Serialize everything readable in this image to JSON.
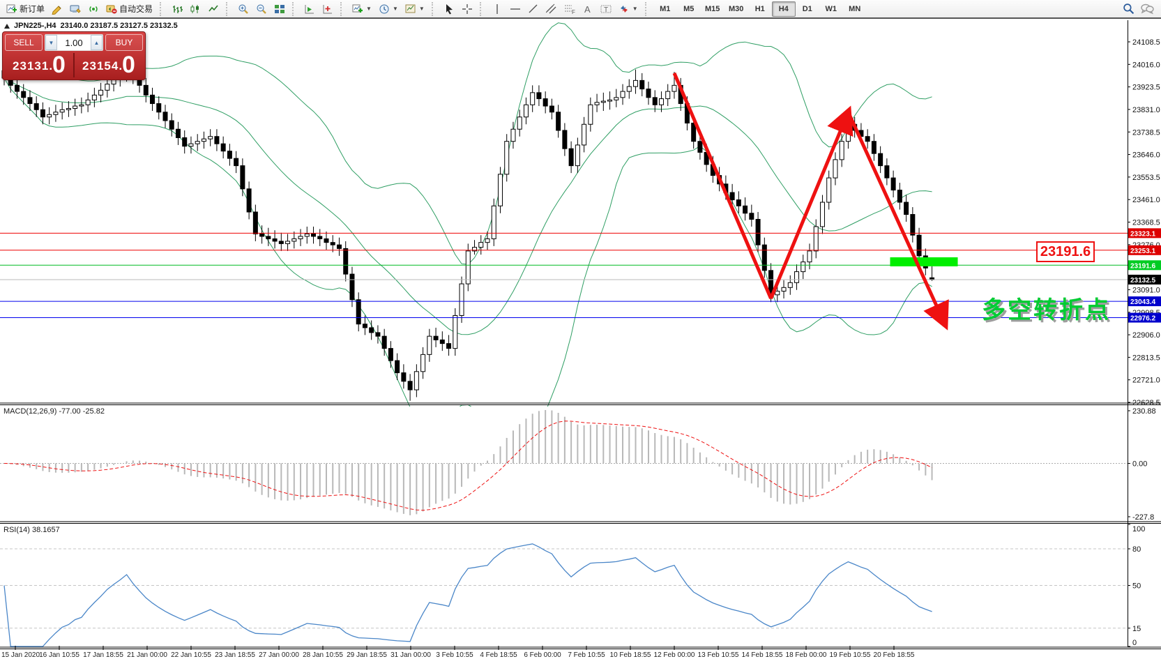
{
  "toolbar": {
    "new_order_label": "新订单",
    "autotrading_label": "自动交易",
    "timeframes": [
      "M1",
      "M5",
      "M15",
      "M30",
      "H1",
      "H4",
      "D1",
      "W1",
      "MN"
    ],
    "active_timeframe": "H4",
    "icon_names": [
      "new-order-icon",
      "styler-icon",
      "metaeditor-icon",
      "signals-icon",
      "autotrading-icon",
      "bar-chart-icon",
      "candlestick-chart-icon",
      "line-chart-icon",
      "zoom-in-icon",
      "zoom-out-icon",
      "tile-windows-icon",
      "auto-scroll-icon",
      "chart-shift-icon",
      "indicators-icon",
      "periods-icon",
      "templates-icon",
      "cursor-icon",
      "crosshair-icon",
      "vertical-line-icon",
      "horizontal-line-icon",
      "trendline-icon",
      "equidistant-channel-icon",
      "fibonacci-icon",
      "text-icon",
      "text-label-icon",
      "arrows-icon",
      "search-icon",
      "chat-icon"
    ]
  },
  "symbol_info": {
    "title": "JPN225-,H4",
    "ohlc_text": "23140.0 23187.5 23127.5 23132.5",
    "collapse_icon": "triangle-up"
  },
  "trade_panel": {
    "sell_label": "SELL",
    "buy_label": "BUY",
    "volume": "1.00",
    "sell_price_main": "23131",
    "sell_price_big": "0",
    "buy_price_main": "23154",
    "buy_price_big": "0",
    "panel_color": "#c03030"
  },
  "chart_data": {
    "type": "candlestick",
    "symbol": "JPN225-",
    "timeframe": "H4",
    "y_ticks": [
      24108.5,
      24016.0,
      23923.5,
      23831.0,
      23738.5,
      23646.0,
      23553.5,
      23461.0,
      23368.5,
      23276.0,
      23183.5,
      23091.0,
      22998.5,
      22906.0,
      22813.5,
      22721.0,
      22628.5
    ],
    "time_labels": [
      "15 Jan 2020",
      "16 Jan 10:55",
      "17 Jan 18:55",
      "21 Jan 00:00",
      "22 Jan 10:55",
      "23 Jan 18:55",
      "27 Jan 00:00",
      "28 Jan 10:55",
      "29 Jan 18:55",
      "31 Jan 00:00",
      "3 Feb 10:55",
      "4 Feb 18:55",
      "6 Feb 00:00",
      "7 Feb 10:55",
      "10 Feb 18:55",
      "12 Feb 00:00",
      "13 Feb 10:55",
      "14 Feb 18:55",
      "18 Feb 00:00",
      "19 Feb 10:55",
      "20 Feb 18:55"
    ],
    "candles": [
      [
        23990,
        24020,
        23930,
        23960
      ],
      [
        23960,
        23990,
        23900,
        23930
      ],
      [
        23930,
        23960,
        23875,
        23905
      ],
      [
        23905,
        23935,
        23850,
        23880
      ],
      [
        23880,
        23910,
        23825,
        23855
      ],
      [
        23855,
        23885,
        23800,
        23830
      ],
      [
        23830,
        23860,
        23770,
        23800
      ],
      [
        23800,
        23840,
        23770,
        23810
      ],
      [
        23810,
        23850,
        23780,
        23820
      ],
      [
        23820,
        23860,
        23790,
        23830
      ],
      [
        23830,
        23865,
        23800,
        23835
      ],
      [
        23835,
        23875,
        23805,
        23845
      ],
      [
        23845,
        23880,
        23815,
        23850
      ],
      [
        23850,
        23900,
        23820,
        23870
      ],
      [
        23870,
        23920,
        23840,
        23890
      ],
      [
        23890,
        23940,
        23860,
        23910
      ],
      [
        23910,
        23965,
        23880,
        23935
      ],
      [
        23935,
        23985,
        23905,
        23955
      ],
      [
        23955,
        24005,
        23925,
        23975
      ],
      [
        23975,
        24040,
        23945,
        24000
      ],
      [
        24000,
        24030,
        23935,
        23965
      ],
      [
        23965,
        23995,
        23900,
        23930
      ],
      [
        23930,
        23960,
        23860,
        23890
      ],
      [
        23890,
        23920,
        23825,
        23855
      ],
      [
        23855,
        23885,
        23790,
        23820
      ],
      [
        23820,
        23850,
        23755,
        23785
      ],
      [
        23785,
        23815,
        23720,
        23750
      ],
      [
        23750,
        23780,
        23685,
        23715
      ],
      [
        23715,
        23745,
        23650,
        23680
      ],
      [
        23680,
        23720,
        23650,
        23690
      ],
      [
        23690,
        23730,
        23660,
        23700
      ],
      [
        23700,
        23740,
        23670,
        23710
      ],
      [
        23710,
        23750,
        23680,
        23720
      ],
      [
        23720,
        23750,
        23660,
        23690
      ],
      [
        23690,
        23720,
        23630,
        23660
      ],
      [
        23660,
        23690,
        23600,
        23630
      ],
      [
        23630,
        23660,
        23570,
        23600
      ],
      [
        23600,
        23630,
        23475,
        23505
      ],
      [
        23505,
        23535,
        23380,
        23410
      ],
      [
        23410,
        23440,
        23290,
        23320
      ],
      [
        23320,
        23355,
        23280,
        23310
      ],
      [
        23310,
        23345,
        23270,
        23300
      ],
      [
        23300,
        23335,
        23260,
        23290
      ],
      [
        23290,
        23325,
        23250,
        23280
      ],
      [
        23280,
        23320,
        23250,
        23290
      ],
      [
        23290,
        23330,
        23260,
        23300
      ],
      [
        23300,
        23340,
        23270,
        23310
      ],
      [
        23310,
        23350,
        23280,
        23320
      ],
      [
        23320,
        23350,
        23280,
        23310
      ],
      [
        23310,
        23340,
        23270,
        23300
      ],
      [
        23300,
        23330,
        23255,
        23285
      ],
      [
        23285,
        23315,
        23245,
        23275
      ],
      [
        23275,
        23305,
        23230,
        23260
      ],
      [
        23260,
        23290,
        23125,
        23155
      ],
      [
        23155,
        23185,
        23020,
        23050
      ],
      [
        23050,
        23080,
        22920,
        22950
      ],
      [
        22950,
        22985,
        22905,
        22935
      ],
      [
        22935,
        22965,
        22885,
        22915
      ],
      [
        22915,
        22945,
        22870,
        22900
      ],
      [
        22900,
        22930,
        22820,
        22850
      ],
      [
        22850,
        22880,
        22770,
        22800
      ],
      [
        22800,
        22830,
        22720,
        22750
      ],
      [
        22750,
        22785,
        22685,
        22715
      ],
      [
        22715,
        22745,
        22635,
        22680
      ],
      [
        22680,
        22785,
        22650,
        22755
      ],
      [
        22755,
        22855,
        22725,
        22825
      ],
      [
        22825,
        22930,
        22795,
        22900
      ],
      [
        22900,
        22935,
        22855,
        22885
      ],
      [
        22885,
        22920,
        22840,
        22870
      ],
      [
        22870,
        22905,
        22820,
        22850
      ],
      [
        22850,
        23015,
        22820,
        22985
      ],
      [
        22985,
        23145,
        22955,
        23115
      ],
      [
        23115,
        23280,
        23085,
        23250
      ],
      [
        23250,
        23295,
        23235,
        23265
      ],
      [
        23265,
        23315,
        23235,
        23285
      ],
      [
        23285,
        23330,
        23255,
        23300
      ],
      [
        23300,
        23465,
        23270,
        23435
      ],
      [
        23435,
        23595,
        23405,
        23565
      ],
      [
        23565,
        23730,
        23535,
        23700
      ],
      [
        23700,
        23780,
        23670,
        23750
      ],
      [
        23750,
        23830,
        23720,
        23800
      ],
      [
        23800,
        23880,
        23770,
        23850
      ],
      [
        23850,
        23930,
        23820,
        23900
      ],
      [
        23900,
        23930,
        23845,
        23875
      ],
      [
        23875,
        23905,
        23815,
        23845
      ],
      [
        23845,
        23875,
        23790,
        23820
      ],
      [
        23820,
        23850,
        23715,
        23745
      ],
      [
        23745,
        23775,
        23640,
        23670
      ],
      [
        23670,
        23700,
        23570,
        23600
      ],
      [
        23600,
        23715,
        23570,
        23685
      ],
      [
        23685,
        23800,
        23655,
        23770
      ],
      [
        23770,
        23880,
        23740,
        23850
      ],
      [
        23850,
        23895,
        23820,
        23860
      ],
      [
        23860,
        23900,
        23825,
        23865
      ],
      [
        23865,
        23905,
        23830,
        23870
      ],
      [
        23870,
        23915,
        23840,
        23880
      ],
      [
        23880,
        23935,
        23850,
        23905
      ],
      [
        23905,
        23955,
        23875,
        23925
      ],
      [
        23925,
        23995,
        23895,
        23950
      ],
      [
        23950,
        23980,
        23885,
        23915
      ],
      [
        23915,
        23945,
        23850,
        23880
      ],
      [
        23880,
        23910,
        23820,
        23850
      ],
      [
        23850,
        23905,
        23820,
        23875
      ],
      [
        23875,
        23935,
        23845,
        23905
      ],
      [
        23905,
        23985,
        23875,
        23930
      ],
      [
        23930,
        23960,
        23825,
        23855
      ],
      [
        23855,
        23885,
        23745,
        23775
      ],
      [
        23775,
        23805,
        23670,
        23700
      ],
      [
        23700,
        23735,
        23625,
        23655
      ],
      [
        23655,
        23690,
        23575,
        23605
      ],
      [
        23605,
        23640,
        23530,
        23560
      ],
      [
        23560,
        23595,
        23495,
        23525
      ],
      [
        23525,
        23560,
        23460,
        23490
      ],
      [
        23490,
        23525,
        23430,
        23460
      ],
      [
        23460,
        23495,
        23405,
        23435
      ],
      [
        23435,
        23470,
        23375,
        23405
      ],
      [
        23405,
        23440,
        23350,
        23380
      ],
      [
        23380,
        23410,
        23245,
        23275
      ],
      [
        23275,
        23305,
        23140,
        23170
      ],
      [
        23170,
        23200,
        23040,
        23070
      ],
      [
        23070,
        23115,
        23040,
        23085
      ],
      [
        23085,
        23130,
        23055,
        23100
      ],
      [
        23100,
        23150,
        23070,
        23120
      ],
      [
        23120,
        23195,
        23090,
        23165
      ],
      [
        23165,
        23235,
        23135,
        23205
      ],
      [
        23205,
        23280,
        23175,
        23250
      ],
      [
        23250,
        23380,
        23220,
        23350
      ],
      [
        23350,
        23480,
        23320,
        23450
      ],
      [
        23450,
        23580,
        23420,
        23550
      ],
      [
        23550,
        23655,
        23520,
        23625
      ],
      [
        23625,
        23730,
        23595,
        23700
      ],
      [
        23700,
        23835,
        23670,
        23770
      ],
      [
        23770,
        23800,
        23715,
        23745
      ],
      [
        23745,
        23775,
        23690,
        23720
      ],
      [
        23720,
        23750,
        23670,
        23700
      ],
      [
        23700,
        23730,
        23620,
        23650
      ],
      [
        23650,
        23680,
        23570,
        23600
      ],
      [
        23600,
        23630,
        23520,
        23550
      ],
      [
        23550,
        23580,
        23470,
        23500
      ],
      [
        23500,
        23530,
        23420,
        23450
      ],
      [
        23450,
        23480,
        23370,
        23400
      ],
      [
        23400,
        23430,
        23285,
        23315
      ],
      [
        23315,
        23345,
        23200,
        23230
      ],
      [
        23230,
        23260,
        23150,
        23180
      ],
      [
        23140,
        23187,
        23127,
        23132
      ]
    ],
    "bollinger": {
      "period": 20,
      "deviation": 2,
      "color": "#2e9e63"
    },
    "levels": [
      {
        "price": 23323.1,
        "line_color": "#ee0000",
        "badge_bg": "#dd0000",
        "label": "23323.1"
      },
      {
        "price": 23253.1,
        "line_color": "#ee0000",
        "badge_bg": "#dd0000",
        "label": "23253.1"
      },
      {
        "price": 23191.6,
        "line_color": "#00bb22",
        "badge_bg": "#00cc22",
        "label": "23191.6"
      },
      {
        "price": 23132.5,
        "line_color": "#b8b8b8",
        "badge_bg": "#000000",
        "label": "23132.5"
      },
      {
        "price": 23043.4,
        "line_color": "#0000ee",
        "badge_bg": "#0000cc",
        "label": "23043.4"
      },
      {
        "price": 22976.2,
        "line_color": "#0000ee",
        "badge_bg": "#0000cc",
        "label": "22976.2"
      }
    ],
    "annotations": {
      "trend_arrows": [
        {
          "from": [
            104,
            23980
          ],
          "to": [
            119,
            23055
          ],
          "head": false
        },
        {
          "from": [
            119,
            23055
          ],
          "to": [
            131,
            23820
          ],
          "head": true
        },
        {
          "from": [
            131,
            23820
          ],
          "to": [
            146,
            22950
          ],
          "head": true
        }
      ],
      "arrow_color": "#ee1111",
      "highlight_rect": {
        "i0": 137.5,
        "i1": 148,
        "p_top": 23224,
        "p_bottom": 23187,
        "color": "#00ee00"
      },
      "price_callout": "23191.6",
      "cn_note": "多空转折点"
    },
    "macd": {
      "label": "MACD(12,26,9)",
      "value": "-77.00",
      "signal_value": "-25.82",
      "fast": 12,
      "slow": 26,
      "signal": 9,
      "axis_ticks": [
        "230.88",
        "0.00",
        "-227.8"
      ],
      "bar_color": "#b8b8b8",
      "signal_color": "#ee1111"
    },
    "rsi": {
      "label": "RSI(14)",
      "value": "38.1657",
      "period": 14,
      "axis_ticks": [
        "100",
        "80",
        "50",
        "15",
        "0"
      ],
      "dashed_levels": [
        80,
        50,
        15
      ],
      "color": "#4a86c8"
    }
  }
}
